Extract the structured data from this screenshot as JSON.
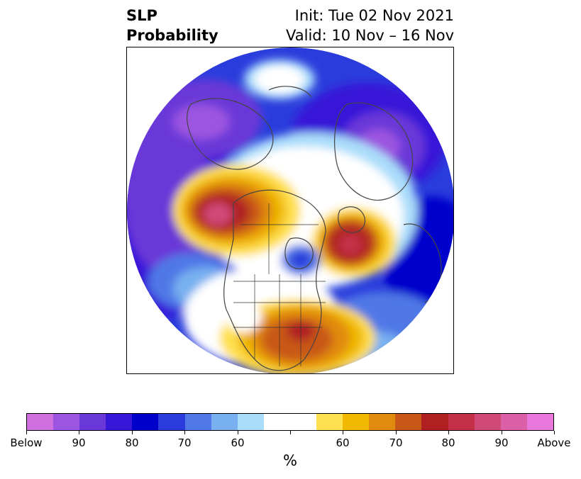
{
  "title": {
    "left_line1": "SLP",
    "left_line2": "Probability",
    "right_line1": "Init: Tue 02 Nov 2021",
    "right_line2": "Valid: 10 Nov – 16 Nov"
  },
  "map": {
    "projection": "north polar stereographic",
    "region": "Northern Hemisphere centered on North Pole",
    "colors": {
      "below_90": "#d070e0",
      "below_80": "#9b55e0",
      "below_75": "#6a38d8",
      "below_70": "#3818d8",
      "below_65": "#0000cc",
      "below_60": "#2a3ddc",
      "below_55": "#5078e6",
      "below_50": "#78b0f0",
      "below_45": "#aaddfa",
      "neutral": "#ffffff",
      "above_45": "#ffe050",
      "above_50": "#f0b800",
      "above_55": "#e08a10",
      "above_60": "#c85818",
      "above_65": "#b02020",
      "above_70": "#c43048",
      "above_75": "#d04a78",
      "above_80": "#dc60a8",
      "above_90": "#e878dc"
    }
  },
  "colorbar": {
    "colors": [
      "#d070e0",
      "#9b55e0",
      "#6a38d8",
      "#3818d8",
      "#0000cc",
      "#2a3ddc",
      "#5078e6",
      "#78b0f0",
      "#aaddfa",
      "#ffffff",
      "#ffffff",
      "#ffe050",
      "#f0b800",
      "#e08a10",
      "#c85818",
      "#b02020",
      "#c43048",
      "#d04a78",
      "#dc60a8",
      "#e878dc"
    ],
    "tick_labels": [
      "Below",
      "90",
      "80",
      "70",
      "60",
      "",
      "60",
      "70",
      "80",
      "90",
      "Above"
    ],
    "units": "%"
  }
}
